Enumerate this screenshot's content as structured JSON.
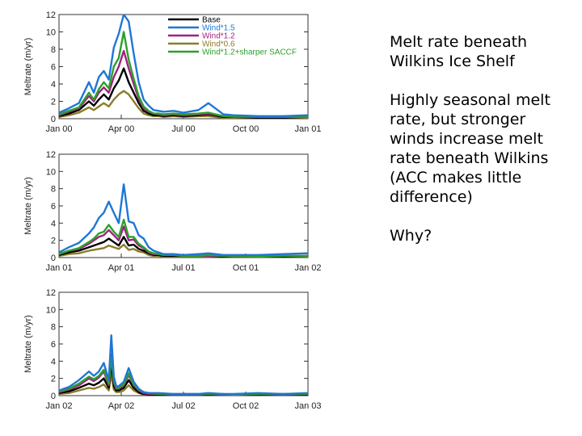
{
  "notes": {
    "title": "Melt rate beneath Wilkins Ice Shelf",
    "body": "Highly seasonal melt rate, but stronger winds increase melt rate beneath Wilkins (ACC makes little difference)",
    "question": "Why?"
  },
  "chart_data": [
    {
      "type": "line",
      "title": "",
      "xlabel": "",
      "ylabel": "Meltrate (m/yr)",
      "ylim": [
        0,
        12
      ],
      "yticks": [
        "0",
        "2",
        "4",
        "6",
        "8",
        "10",
        "12"
      ],
      "xlim": [
        0,
        100
      ],
      "xticks": [
        {
          "at": 0,
          "label": "Jan 00"
        },
        {
          "at": 25,
          "label": "Apr 00"
        },
        {
          "at": 50,
          "label": "Jul 00"
        },
        {
          "at": 75,
          "label": "Oct 00"
        },
        {
          "at": 100,
          "label": "Jan 01"
        }
      ],
      "legend": [
        "Base",
        "Wind*1.5",
        "Wind*1.2",
        "Wind*0.6",
        "Wind*1.2+sharper SACCF"
      ],
      "x": [
        0,
        4,
        8,
        12,
        14,
        16,
        18,
        20,
        22,
        24,
        26,
        28,
        30,
        32,
        34,
        36,
        38,
        40,
        42,
        46,
        50,
        56,
        60,
        66,
        70,
        80,
        90,
        100
      ],
      "series": [
        {
          "name": "Wind*0.6",
          "color": "#8b7d2a",
          "values": [
            0.2,
            0.4,
            0.7,
            1.3,
            1.0,
            1.4,
            1.8,
            1.4,
            2.2,
            2.8,
            3.2,
            2.8,
            2.0,
            1.2,
            0.6,
            0.4,
            0.3,
            0.3,
            0.2,
            0.3,
            0.2,
            0.3,
            0.3,
            0.1,
            0.1,
            0.1,
            0.1,
            0.1
          ]
        },
        {
          "name": "Base",
          "color": "#000000",
          "values": [
            0.3,
            0.6,
            1.0,
            2.0,
            1.5,
            2.2,
            2.8,
            2.2,
            3.5,
            4.4,
            5.8,
            4.2,
            3.0,
            1.8,
            0.9,
            0.6,
            0.4,
            0.4,
            0.3,
            0.4,
            0.3,
            0.4,
            0.5,
            0.2,
            0.2,
            0.1,
            0.1,
            0.2
          ]
        },
        {
          "name": "Wind*1.2",
          "color": "#a0237f",
          "values": [
            0.4,
            0.8,
            1.2,
            2.6,
            2.0,
            3.0,
            3.6,
            3.0,
            4.8,
            6.0,
            7.8,
            5.8,
            4.0,
            2.3,
            1.2,
            0.8,
            0.6,
            0.5,
            0.4,
            0.5,
            0.4,
            0.5,
            0.6,
            0.3,
            0.2,
            0.2,
            0.2,
            0.2
          ]
        },
        {
          "name": "Wind*1.2+sharper SACCF",
          "color": "#2ca02c",
          "values": [
            0.5,
            0.9,
            1.3,
            3.0,
            2.2,
            3.4,
            4.2,
            3.5,
            6.0,
            7.0,
            10.0,
            6.8,
            4.6,
            2.6,
            1.4,
            0.9,
            0.6,
            0.6,
            0.5,
            0.6,
            0.5,
            0.6,
            0.7,
            0.3,
            0.3,
            0.2,
            0.2,
            0.2
          ]
        },
        {
          "name": "Wind*1.5",
          "color": "#1f77d4",
          "values": [
            0.7,
            1.2,
            1.8,
            4.2,
            3.0,
            4.8,
            5.5,
            4.5,
            8.2,
            9.8,
            12.0,
            11.2,
            7.5,
            4.2,
            2.2,
            1.5,
            1.0,
            0.9,
            0.8,
            0.9,
            0.7,
            1.0,
            1.8,
            0.5,
            0.4,
            0.3,
            0.3,
            0.4
          ]
        }
      ]
    },
    {
      "type": "line",
      "title": "",
      "xlabel": "",
      "ylabel": "Meltrate (m/yr)",
      "ylim": [
        0,
        12
      ],
      "yticks": [
        "0",
        "2",
        "4",
        "6",
        "8",
        "10",
        "12"
      ],
      "xlim": [
        0,
        100
      ],
      "xticks": [
        {
          "at": 0,
          "label": "Jan 01"
        },
        {
          "at": 25,
          "label": "Apr 01"
        },
        {
          "at": 50,
          "label": "Jul 01"
        },
        {
          "at": 75,
          "label": "Oct 01"
        },
        {
          "at": 100,
          "label": "Jan 02"
        }
      ],
      "x": [
        0,
        4,
        8,
        12,
        14,
        16,
        18,
        20,
        22,
        24,
        26,
        28,
        30,
        32,
        34,
        36,
        38,
        40,
        42,
        46,
        50,
        56,
        60,
        66,
        70,
        80,
        90,
        100
      ],
      "series": [
        {
          "name": "Wind*0.6",
          "color": "#8b7d2a",
          "values": [
            0.2,
            0.4,
            0.5,
            0.8,
            0.9,
            1.0,
            1.1,
            1.4,
            1.2,
            1.0,
            1.5,
            0.9,
            1.0,
            0.7,
            0.6,
            0.3,
            0.2,
            0.2,
            0.1,
            0.1,
            0.1,
            0.1,
            0.1,
            0.1,
            0.1,
            0.1,
            0.1,
            0.1
          ]
        },
        {
          "name": "Base",
          "color": "#000000",
          "values": [
            0.3,
            0.6,
            0.8,
            1.2,
            1.4,
            1.6,
            1.8,
            2.2,
            1.8,
            1.4,
            2.4,
            1.4,
            1.5,
            1.0,
            0.8,
            0.5,
            0.3,
            0.3,
            0.2,
            0.2,
            0.2,
            0.2,
            0.2,
            0.1,
            0.1,
            0.1,
            0.1,
            0.2
          ]
        },
        {
          "name": "Wind*1.2",
          "color": "#a0237f",
          "values": [
            0.4,
            0.8,
            1.0,
            1.6,
            2.0,
            2.4,
            2.6,
            3.2,
            2.6,
            2.0,
            3.6,
            2.0,
            2.1,
            1.4,
            1.1,
            0.6,
            0.4,
            0.4,
            0.3,
            0.3,
            0.2,
            0.2,
            0.2,
            0.2,
            0.1,
            0.1,
            0.2,
            0.2
          ]
        },
        {
          "name": "Wind*1.2+sharper SACCF",
          "color": "#2ca02c",
          "values": [
            0.4,
            0.8,
            1.1,
            1.8,
            2.2,
            2.8,
            3.0,
            3.8,
            3.0,
            2.4,
            4.4,
            2.4,
            2.4,
            1.6,
            1.2,
            0.7,
            0.5,
            0.4,
            0.3,
            0.3,
            0.2,
            0.2,
            0.3,
            0.2,
            0.2,
            0.1,
            0.2,
            0.2
          ]
        },
        {
          "name": "Wind*1.5",
          "color": "#1f77d4",
          "values": [
            0.6,
            1.2,
            1.7,
            2.8,
            3.5,
            4.6,
            5.2,
            6.5,
            5.2,
            4.0,
            8.5,
            4.2,
            4.0,
            2.6,
            2.2,
            1.2,
            0.8,
            0.6,
            0.4,
            0.4,
            0.3,
            0.4,
            0.5,
            0.3,
            0.3,
            0.3,
            0.4,
            0.5
          ]
        }
      ]
    },
    {
      "type": "line",
      "title": "",
      "xlabel": "",
      "ylabel": "Meltrate (m/yr)",
      "ylim": [
        0,
        12
      ],
      "yticks": [
        "0",
        "2",
        "4",
        "6",
        "8",
        "10",
        "12"
      ],
      "xlim": [
        0,
        100
      ],
      "xticks": [
        {
          "at": 0,
          "label": "Jan 02"
        },
        {
          "at": 25,
          "label": "Apr 02"
        },
        {
          "at": 50,
          "label": "Jul 02"
        },
        {
          "at": 75,
          "label": "Oct 02"
        },
        {
          "at": 100,
          "label": "Jan 03"
        }
      ],
      "x": [
        0,
        4,
        8,
        12,
        14,
        16,
        18,
        20,
        21,
        22,
        23,
        24,
        26,
        28,
        30,
        32,
        34,
        36,
        40,
        46,
        50,
        56,
        60,
        66,
        70,
        80,
        90,
        100
      ],
      "series": [
        {
          "name": "Wind*0.6",
          "color": "#8b7d2a",
          "values": [
            0.2,
            0.3,
            0.6,
            0.9,
            0.8,
            1.0,
            1.3,
            0.6,
            2.5,
            0.7,
            0.4,
            0.4,
            0.6,
            1.2,
            0.6,
            0.3,
            0.1,
            0.1,
            0.1,
            0.1,
            0.1,
            0.1,
            0.1,
            0.1,
            0.1,
            0.1,
            0.1,
            0.1
          ]
        },
        {
          "name": "Base",
          "color": "#000000",
          "values": [
            0.3,
            0.5,
            0.9,
            1.4,
            1.2,
            1.5,
            2.0,
            0.9,
            3.8,
            1.1,
            0.6,
            0.6,
            0.9,
            1.8,
            0.9,
            0.4,
            0.2,
            0.1,
            0.1,
            0.1,
            0.1,
            0.1,
            0.1,
            0.1,
            0.1,
            0.1,
            0.1,
            0.1
          ]
        },
        {
          "name": "Wind*1.2",
          "color": "#a0237f",
          "values": [
            0.4,
            0.7,
            1.2,
            2.0,
            1.7,
            2.1,
            2.8,
            1.2,
            4.8,
            1.5,
            0.8,
            0.8,
            1.2,
            2.4,
            1.2,
            0.6,
            0.3,
            0.2,
            0.2,
            0.1,
            0.1,
            0.1,
            0.2,
            0.1,
            0.1,
            0.2,
            0.1,
            0.2
          ]
        },
        {
          "name": "Wind*1.2+sharper SACCF",
          "color": "#2ca02c",
          "values": [
            0.5,
            0.8,
            1.4,
            2.2,
            1.9,
            2.3,
            3.0,
            1.4,
            4.4,
            1.7,
            0.9,
            0.9,
            1.3,
            2.6,
            1.3,
            0.7,
            0.4,
            0.3,
            0.2,
            0.2,
            0.2,
            0.2,
            0.2,
            0.2,
            0.1,
            0.2,
            0.2,
            0.2
          ]
        },
        {
          "name": "Wind*1.5",
          "color": "#1f77d4",
          "values": [
            0.6,
            1.0,
            1.8,
            2.8,
            2.3,
            2.8,
            3.8,
            1.8,
            7.0,
            2.2,
            1.1,
            1.1,
            1.6,
            3.2,
            1.6,
            0.8,
            0.4,
            0.3,
            0.3,
            0.2,
            0.2,
            0.2,
            0.3,
            0.2,
            0.2,
            0.3,
            0.2,
            0.3
          ]
        }
      ]
    }
  ]
}
